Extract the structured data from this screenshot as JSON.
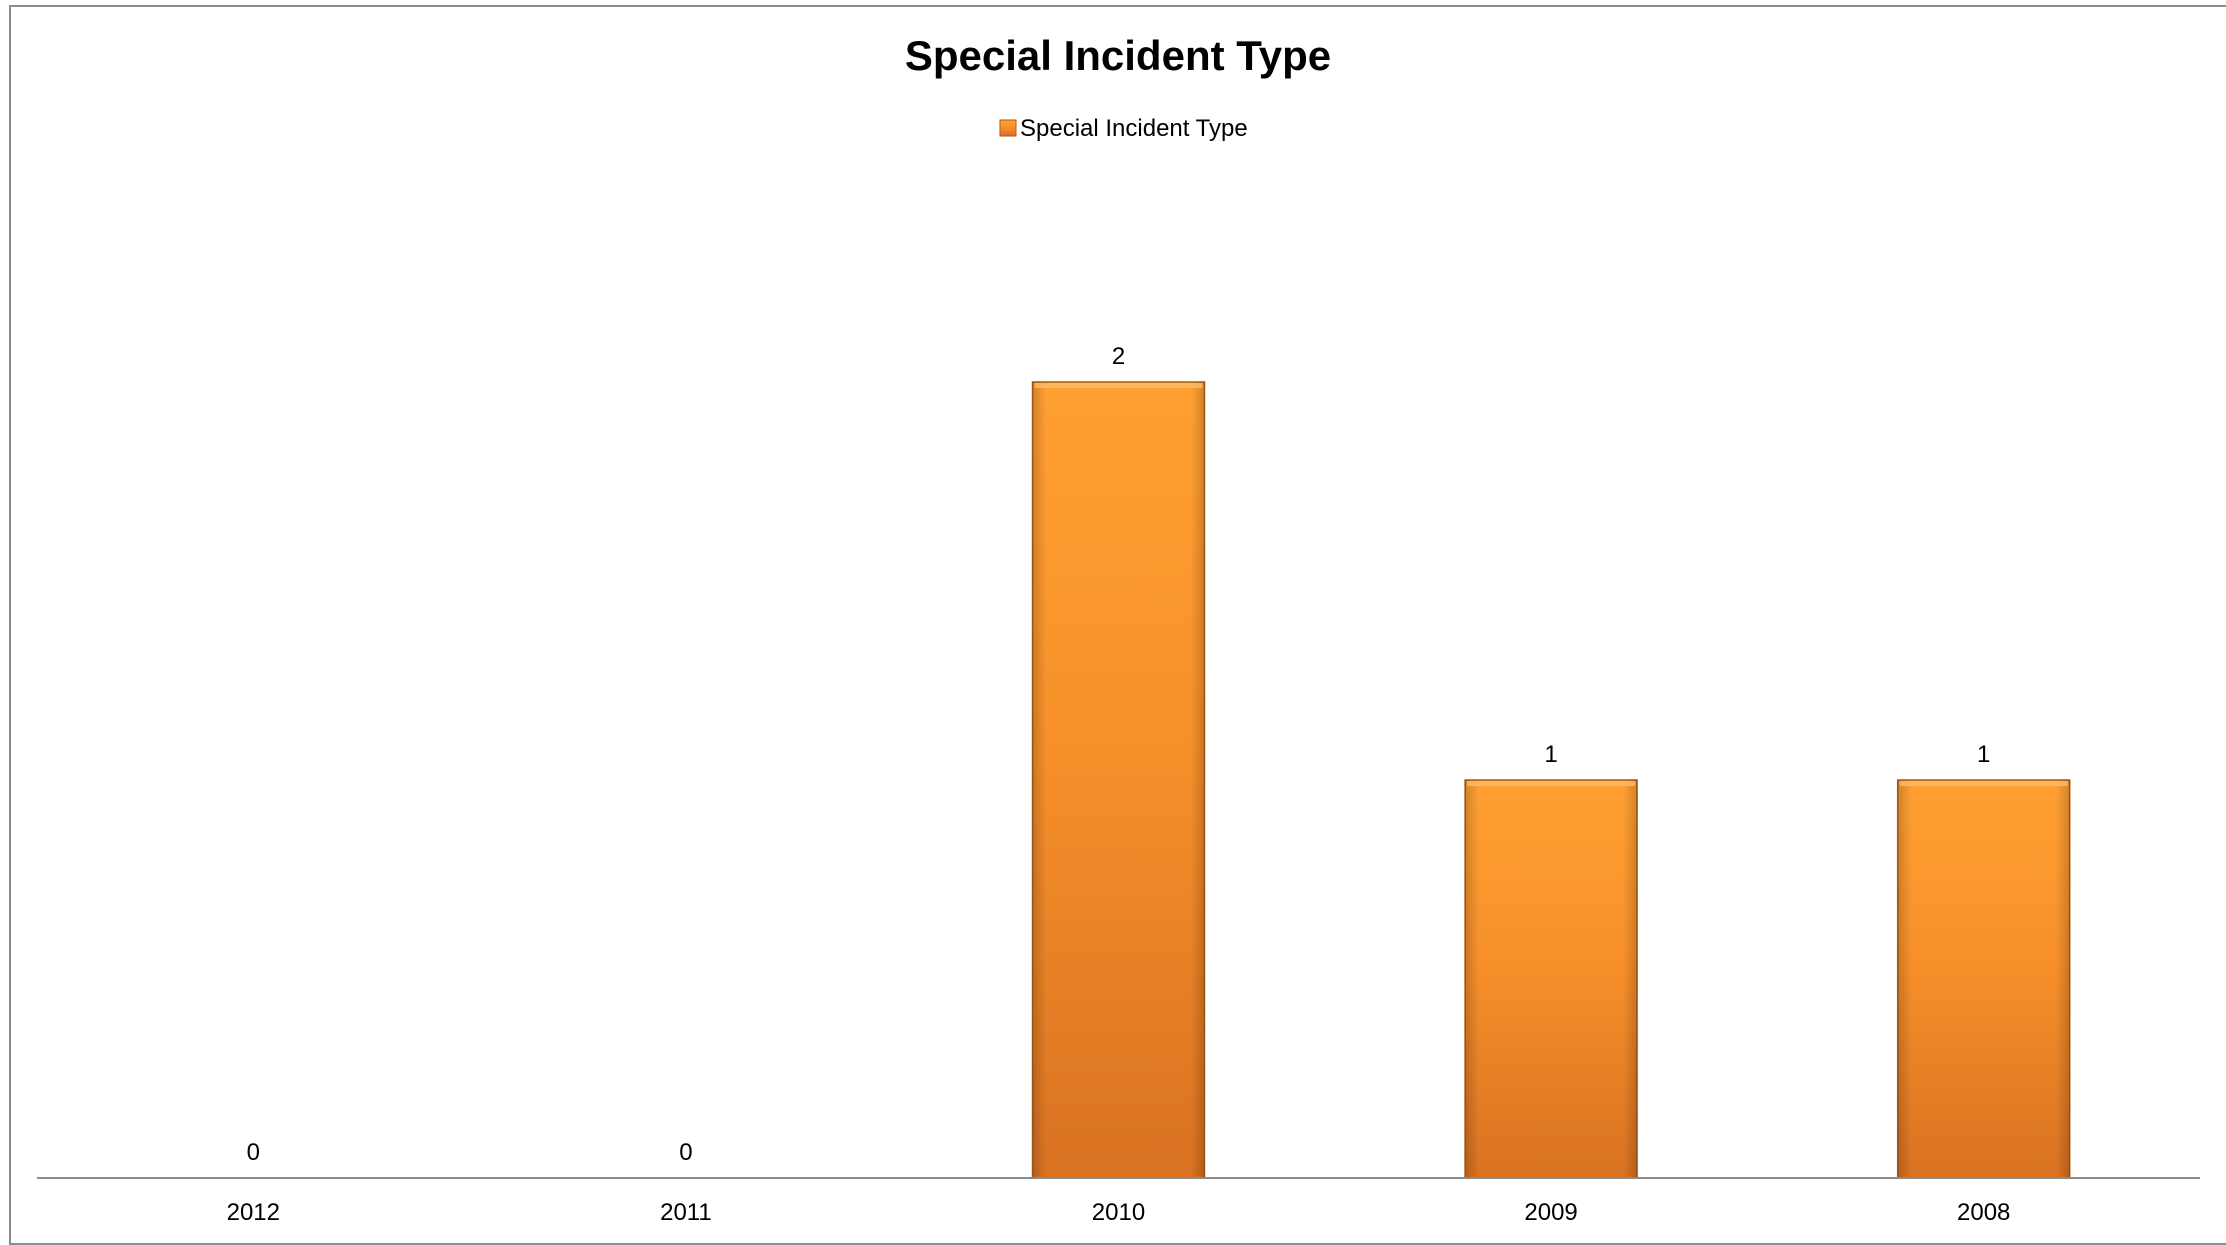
{
  "chart_data": {
    "type": "bar",
    "title": "Special Incident Type",
    "xlabel": "",
    "ylabel": "",
    "categories": [
      "2012",
      "2011",
      "2010",
      "2009",
      "2008"
    ],
    "series": [
      {
        "name": "Special Incident Type",
        "values": [
          0,
          0,
          2,
          1,
          1
        ],
        "data_labels": [
          "0",
          "0",
          "2",
          "1",
          "1"
        ]
      }
    ],
    "ylim": [
      0,
      2.5
    ],
    "grid": false,
    "legend_position": "top",
    "colors": {
      "bar_top": "#ffa033",
      "bar_mid": "#f7902a",
      "bar_bottom": "#d97222",
      "bar_edge": "#a85a14",
      "axis": "#8c8c8c"
    }
  }
}
